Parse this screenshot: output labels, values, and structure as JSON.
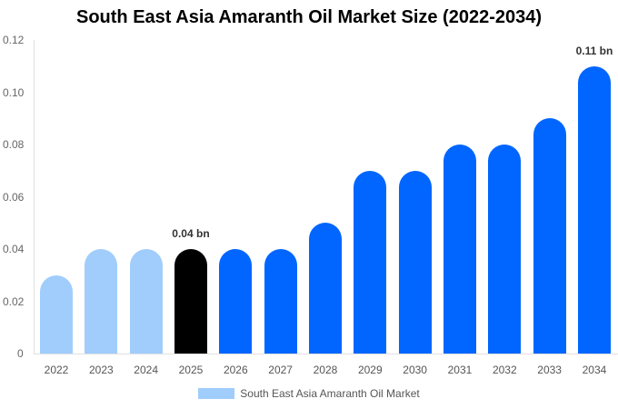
{
  "chart_data": {
    "type": "bar",
    "title": "South East Asia Amaranth Oil Market Size (2022-2034)",
    "xlabel": "",
    "ylabel": "",
    "ylim": [
      0,
      0.12
    ],
    "yticks": [
      "0",
      "0.02",
      "0.04",
      "0.06",
      "0.08",
      "0.10",
      "0.12"
    ],
    "categories": [
      "2022",
      "2023",
      "2024",
      "2025",
      "2026",
      "2027",
      "2028",
      "2029",
      "2030",
      "2031",
      "2032",
      "2033",
      "2034"
    ],
    "series": [
      {
        "name": "South East Asia Amaranth Oil Market",
        "values": [
          0.03,
          0.04,
          0.04,
          0.04,
          0.04,
          0.04,
          0.05,
          0.07,
          0.07,
          0.08,
          0.08,
          0.09,
          0.11
        ],
        "colors": [
          "#a0cdfc",
          "#a0cdfc",
          "#a0cdfc",
          "#000000",
          "#0066ff",
          "#0066ff",
          "#0066ff",
          "#0066ff",
          "#0066ff",
          "#0066ff",
          "#0066ff",
          "#0066ff",
          "#0066ff"
        ]
      }
    ],
    "annotations": [
      {
        "category": "2025",
        "text": "0.04 bn"
      },
      {
        "category": "2034",
        "text": "0.11 bn"
      }
    ],
    "grid": false,
    "legend_position": "bottom"
  },
  "legend": {
    "label": "South East Asia Amaranth Oil Market",
    "color": "#a0cdfc"
  }
}
